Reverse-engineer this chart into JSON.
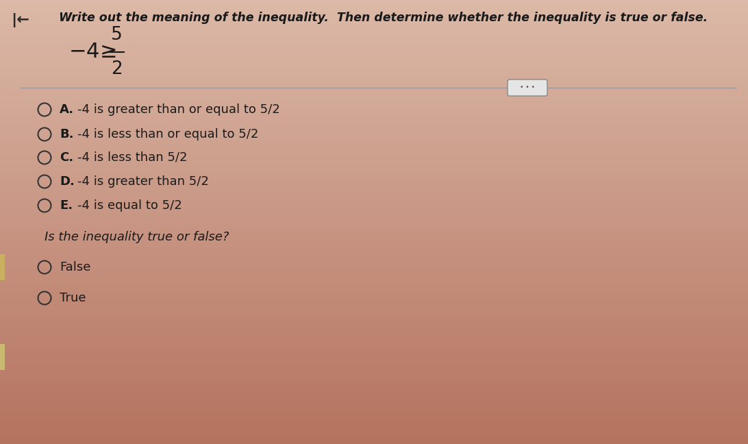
{
  "title": "Write out the meaning of the inequality.  Then determine whether the inequality is true or false.",
  "options": [
    {
      "label": "A.",
      "text": "-4 is greater than or equal to 5/2"
    },
    {
      "label": "B.",
      "text": "-4 is less than or equal to 5/2"
    },
    {
      "label": "C.",
      "text": "-4 is less than 5/2"
    },
    {
      "label": "D.",
      "text": "-4 is greater than 5/2"
    },
    {
      "label": "E.",
      "text": "-4 is equal to 5/2"
    }
  ],
  "question2": "Is the inequality true or false?",
  "answer_options": [
    "False",
    "True"
  ],
  "bg_top_color": "#E8C4B4",
  "bg_bottom_color": "#C8806A",
  "bg_mid_color": "#D4957F",
  "text_color": "#2a2a2a",
  "divider_color": "#999999",
  "circle_edge_color": "#444444",
  "back_arrow": "↤",
  "sidebar_color": "#B0905A",
  "dots_bg": "#E8E8E8",
  "dots_border": "#999999"
}
